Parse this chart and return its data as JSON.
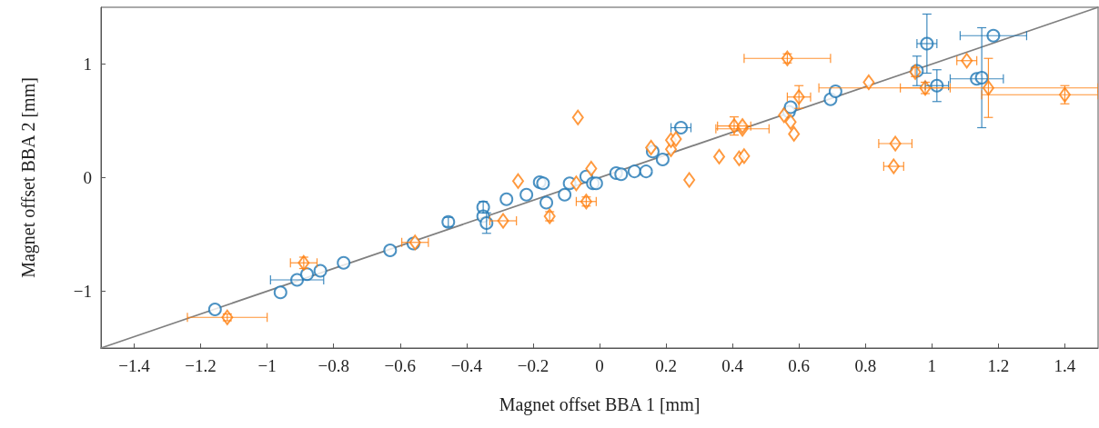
{
  "chart_data": {
    "type": "scatter",
    "xlabel": "Magnet offset BBA 1 [mm]",
    "ylabel": "Magnet offset BBA 2 [mm]",
    "xlim": [
      -1.5,
      1.5
    ],
    "ylim": [
      -1.5,
      1.5
    ],
    "xticks": [
      {
        "value": -1.4,
        "label": "−1.4"
      },
      {
        "value": -1.2,
        "label": "−1.2"
      },
      {
        "value": -1,
        "label": "−1"
      },
      {
        "value": -0.8,
        "label": "−0.8"
      },
      {
        "value": -0.6,
        "label": "−0.6"
      },
      {
        "value": -0.4,
        "label": "−0.4"
      },
      {
        "value": -0.2,
        "label": "−0.2"
      },
      0,
      0.2,
      0.4,
      0.6,
      0.8,
      1,
      1.2,
      1.4
    ],
    "yticks": [
      {
        "value": -1,
        "label": "−1"
      },
      0,
      1
    ],
    "grid": false,
    "series": [
      {
        "type": "line",
        "color": "#808080",
        "marker": "none",
        "x": [
          -1.5,
          1.5
        ],
        "values": [
          -1.5,
          1.5
        ]
      },
      {
        "color": "#1f77b4",
        "marker": "circle",
        "x": [
          -1.157,
          -0.96,
          -0.91,
          -0.88,
          -0.84,
          -0.77,
          -0.63,
          -0.56,
          -0.455,
          -0.35,
          -0.35,
          -0.34,
          -0.28,
          -0.22,
          -0.18,
          -0.17,
          -0.16,
          -0.105,
          -0.09,
          -0.04,
          -0.02,
          -0.01,
          0.05,
          0.065,
          0.105,
          0.14,
          0.19,
          0.16,
          0.245,
          0.57,
          0.575,
          0.695,
          0.71,
          0.985,
          0.955,
          1.015,
          1.135,
          1.15,
          1.185
        ],
        "values": [
          -1.16,
          -1.01,
          -0.9,
          -0.85,
          -0.82,
          -0.75,
          -0.64,
          -0.58,
          -0.39,
          -0.26,
          -0.34,
          -0.4,
          -0.19,
          -0.15,
          -0.04,
          -0.05,
          -0.22,
          -0.15,
          -0.05,
          0.01,
          -0.05,
          -0.05,
          0.04,
          0.03,
          0.055,
          0.055,
          0.16,
          0.23,
          0.44,
          0.58,
          0.62,
          0.69,
          0.76,
          1.18,
          0.94,
          0.81,
          0.87,
          0.88,
          1.25
        ],
        "errors": [
          null,
          null,
          null,
          null,
          null,
          null,
          null,
          null,
          0.04,
          0.05,
          null,
          0.09,
          null,
          null,
          null,
          null,
          null,
          null,
          null,
          null,
          null,
          null,
          null,
          null,
          null,
          null,
          null,
          null,
          null,
          null,
          null,
          null,
          null,
          0.26,
          0.13,
          0.14,
          null,
          0.44,
          null
        ],
        "xerrors": [
          null,
          null,
          0.08,
          null,
          null,
          null,
          null,
          null,
          null,
          null,
          null,
          null,
          null,
          null,
          null,
          null,
          null,
          null,
          null,
          null,
          null,
          null,
          null,
          null,
          null,
          null,
          null,
          null,
          0.03,
          null,
          null,
          null,
          null,
          0.03,
          null,
          0.035,
          0.08,
          null,
          0.1
        ]
      },
      {
        "color": "#ff7f0e",
        "marker": "diamond",
        "x": [
          -1.12,
          -0.89,
          -0.555,
          -0.29,
          -0.245,
          -0.15,
          -0.065,
          -0.07,
          -0.04,
          -0.025,
          0.155,
          0.215,
          0.215,
          0.23,
          0.27,
          0.36,
          0.405,
          0.42,
          0.43,
          0.43,
          0.435,
          0.555,
          0.565,
          0.575,
          0.585,
          0.6,
          0.81,
          0.885,
          0.89,
          0.95,
          0.98,
          1.105,
          1.17,
          1.4
        ],
        "values": [
          -1.23,
          -0.75,
          -0.57,
          -0.38,
          -0.03,
          -0.34,
          0.53,
          -0.05,
          -0.21,
          0.08,
          0.265,
          0.25,
          0.33,
          0.34,
          -0.02,
          0.185,
          0.455,
          0.17,
          0.43,
          0.455,
          0.19,
          0.55,
          1.05,
          0.49,
          0.385,
          0.71,
          0.84,
          0.1,
          0.3,
          0.93,
          0.79,
          1.03,
          0.79,
          0.73
        ],
        "errors": [
          0.03,
          0.05,
          null,
          null,
          null,
          0.04,
          null,
          null,
          0.04,
          null,
          null,
          null,
          null,
          null,
          null,
          null,
          0.08,
          null,
          null,
          null,
          null,
          null,
          0.04,
          null,
          null,
          0.1,
          null,
          null,
          null,
          0.04,
          0.05,
          null,
          0.26,
          0.08
        ],
        "xerrors": [
          0.12,
          0.04,
          0.04,
          0.04,
          null,
          null,
          null,
          null,
          0.03,
          null,
          null,
          null,
          null,
          null,
          null,
          null,
          0.05,
          null,
          0.08,
          null,
          null,
          null,
          0.13,
          null,
          null,
          0.035,
          null,
          0.03,
          0.05,
          null,
          0.075,
          0.03,
          [
            0.66,
            1.5
          ],
          [
            1.15,
            1.5
          ]
        ]
      }
    ]
  }
}
